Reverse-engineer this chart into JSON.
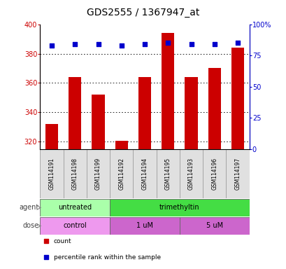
{
  "title": "GDS2555 / 1367947_at",
  "samples": [
    "GSM114191",
    "GSM114198",
    "GSM114199",
    "GSM114192",
    "GSM114194",
    "GSM114195",
    "GSM114193",
    "GSM114196",
    "GSM114197"
  ],
  "bar_values": [
    332,
    364,
    352,
    320.5,
    364,
    394,
    364,
    370,
    384
  ],
  "percentile_values": [
    83,
    84,
    84,
    83,
    84,
    85,
    84,
    84,
    85
  ],
  "bar_color": "#cc0000",
  "dot_color": "#0000cc",
  "ylim_left": [
    315,
    400
  ],
  "ylim_right": [
    0,
    100
  ],
  "yticks_left": [
    320,
    340,
    360,
    380,
    400
  ],
  "yticks_right": [
    0,
    25,
    50,
    75,
    100
  ],
  "ytick_labels_right": [
    "0",
    "25",
    "50",
    "75",
    "100%"
  ],
  "grid_values": [
    320,
    340,
    360,
    380
  ],
  "agent_labels": [
    {
      "text": "untreated",
      "start": 0,
      "end": 3,
      "color": "#aaffaa"
    },
    {
      "text": "trimethyltin",
      "start": 3,
      "end": 9,
      "color": "#44dd44"
    }
  ],
  "dose_labels": [
    {
      "text": "control",
      "start": 0,
      "end": 3,
      "color": "#ee99ee"
    },
    {
      "text": "1 uM",
      "start": 3,
      "end": 6,
      "color": "#cc66cc"
    },
    {
      "text": "5 uM",
      "start": 6,
      "end": 9,
      "color": "#cc66cc"
    }
  ],
  "legend_items": [
    {
      "label": "count",
      "color": "#cc0000",
      "marker": "s"
    },
    {
      "label": "percentile rank within the sample",
      "color": "#0000cc",
      "marker": "s"
    }
  ],
  "agent_row_label": "agent",
  "dose_row_label": "dose",
  "bar_width": 0.55,
  "title_fontsize": 10,
  "tick_fontsize": 7,
  "label_fontsize": 8
}
